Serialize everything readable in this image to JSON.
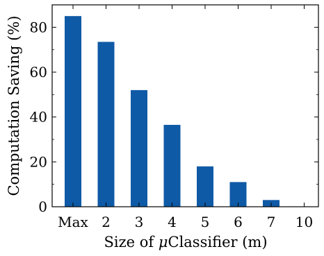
{
  "chart_data": {
    "type": "bar",
    "categories": [
      "Max",
      "2",
      "3",
      "4",
      "5",
      "6",
      "7",
      "10"
    ],
    "values": [
      85,
      73.5,
      52,
      36.5,
      18,
      11,
      3,
      0
    ],
    "title": "",
    "xlabel_prefix": "Size of ",
    "xlabel_mu": "μ",
    "xlabel_suffix": "Classifier (m)",
    "ylabel": "Computation Saving (%)",
    "ylim": [
      0,
      90
    ],
    "yticks": [
      "0",
      "20",
      "40",
      "60",
      "80"
    ],
    "grid": false,
    "legend": "none",
    "bar_color": "#0f5aa6"
  }
}
